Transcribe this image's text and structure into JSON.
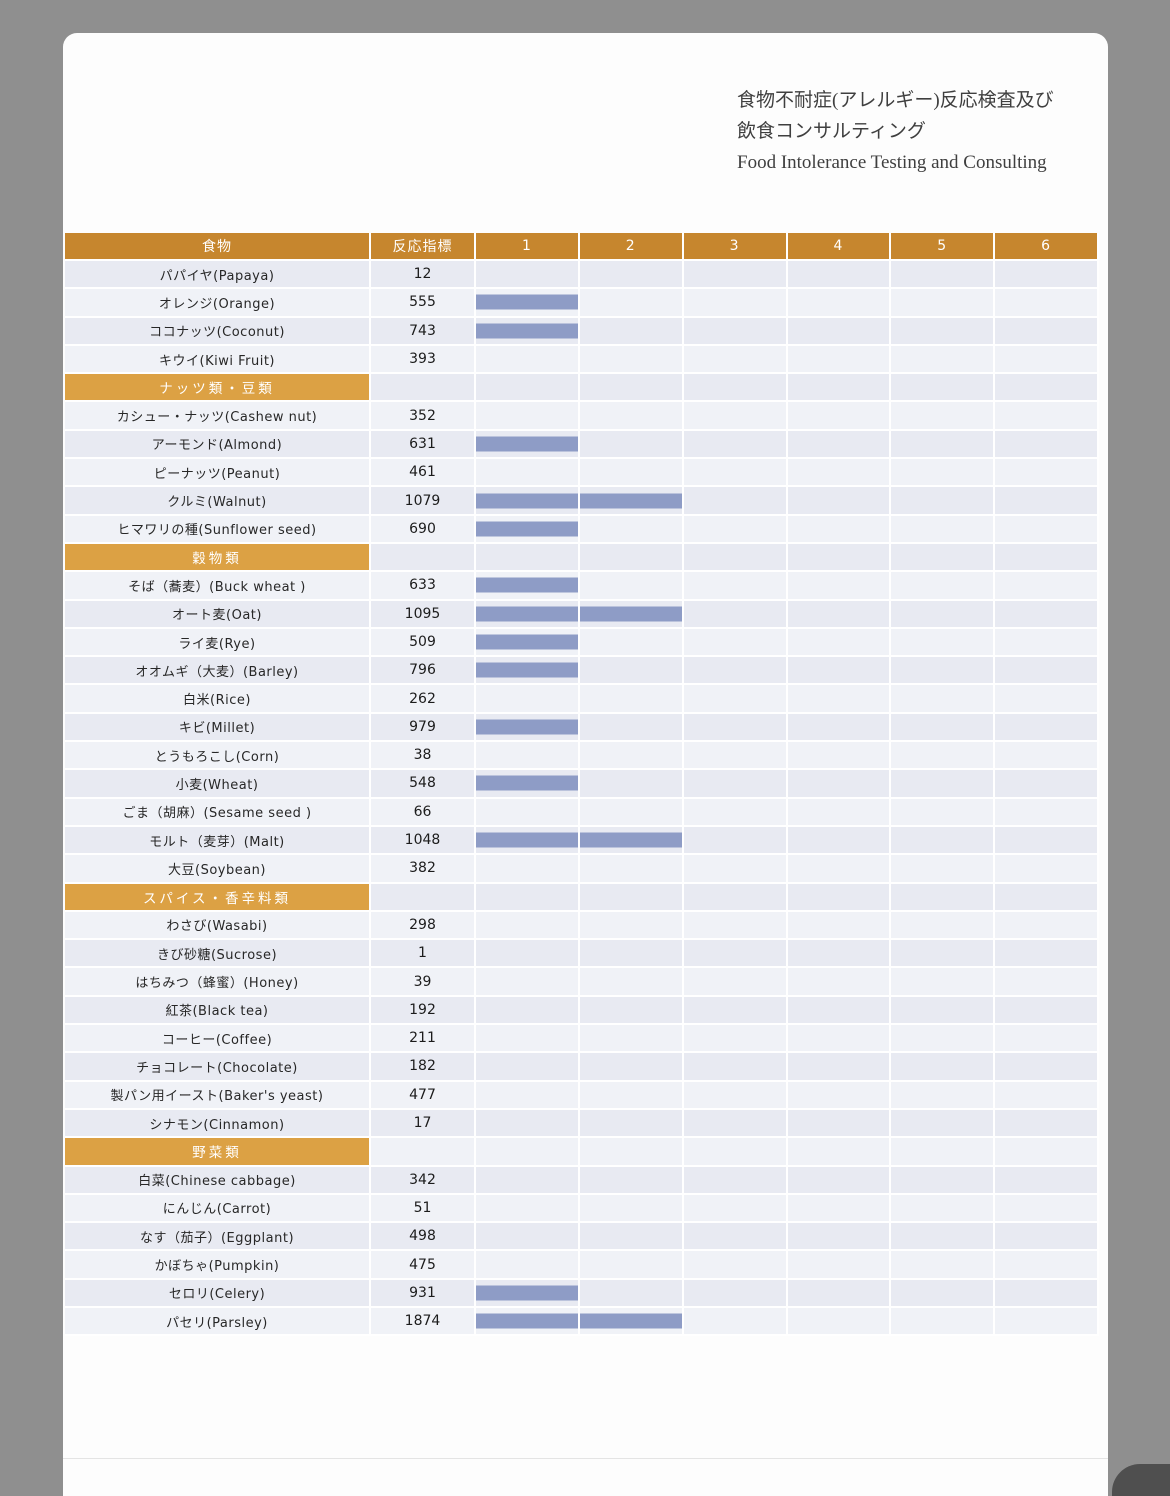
{
  "page": {
    "title_lines": [
      "食物不耐症(アレルギー)反応検査及び",
      "飲食コンサルティング",
      "Food Intolerance Testing and Consulting"
    ]
  },
  "colors": {
    "header_bg": "#C6862E",
    "section_bg": "#DCA144",
    "bar": "#8E9CC6",
    "row_odd": "#E8EAF2",
    "row_even": "#F0F2F7"
  },
  "table": {
    "headers": {
      "food": "食物",
      "index": "反応指標",
      "grades": [
        "1",
        "2",
        "3",
        "4",
        "5",
        "6"
      ]
    },
    "rows": [
      {
        "type": "food",
        "label": "パパイヤ(Papaya)",
        "value": 12,
        "bar": 0
      },
      {
        "type": "food",
        "label": "オレンジ(Orange)",
        "value": 555,
        "bar": 1
      },
      {
        "type": "food",
        "label": "ココナッツ(Coconut)",
        "value": 743,
        "bar": 1
      },
      {
        "type": "food",
        "label": "キウイ(Kiwi Fruit)",
        "value": 393,
        "bar": 0
      },
      {
        "type": "section",
        "label": "ナッツ類・豆類"
      },
      {
        "type": "food",
        "label": "カシュー・ナッツ(Cashew nut)",
        "value": 352,
        "bar": 0
      },
      {
        "type": "food",
        "label": "アーモンド(Almond)",
        "value": 631,
        "bar": 1
      },
      {
        "type": "food",
        "label": "ピーナッツ(Peanut)",
        "value": 461,
        "bar": 0
      },
      {
        "type": "food",
        "label": "クルミ(Walnut)",
        "value": 1079,
        "bar": 2
      },
      {
        "type": "food",
        "label": "ヒマワリの種(Sunflower seed)",
        "value": 690,
        "bar": 1
      },
      {
        "type": "section",
        "label": "穀物類"
      },
      {
        "type": "food",
        "label": "そば（蕎麦）(Buck wheat )",
        "value": 633,
        "bar": 1
      },
      {
        "type": "food",
        "label": "オート麦(Oat)",
        "value": 1095,
        "bar": 2
      },
      {
        "type": "food",
        "label": "ライ麦(Rye)",
        "value": 509,
        "bar": 1
      },
      {
        "type": "food",
        "label": "オオムギ（大麦）(Barley)",
        "value": 796,
        "bar": 1
      },
      {
        "type": "food",
        "label": "白米(Rice)",
        "value": 262,
        "bar": 0
      },
      {
        "type": "food",
        "label": "キビ(Millet)",
        "value": 979,
        "bar": 1
      },
      {
        "type": "food",
        "label": "とうもろこし(Corn)",
        "value": 38,
        "bar": 0
      },
      {
        "type": "food",
        "label": "小麦(Wheat)",
        "value": 548,
        "bar": 1
      },
      {
        "type": "food",
        "label": "ごま（胡麻）(Sesame seed )",
        "value": 66,
        "bar": 0
      },
      {
        "type": "food",
        "label": "モルト（麦芽）(Malt)",
        "value": 1048,
        "bar": 2
      },
      {
        "type": "food",
        "label": "大豆(Soybean)",
        "value": 382,
        "bar": 0
      },
      {
        "type": "section",
        "label": "スパイス・香辛料類"
      },
      {
        "type": "food",
        "label": "わさび(Wasabi)",
        "value": 298,
        "bar": 0
      },
      {
        "type": "food",
        "label": "きび砂糖(Sucrose)",
        "value": 1,
        "bar": 0
      },
      {
        "type": "food",
        "label": "はちみつ（蜂蜜）(Honey)",
        "value": 39,
        "bar": 0
      },
      {
        "type": "food",
        "label": "紅茶(Black tea)",
        "value": 192,
        "bar": 0
      },
      {
        "type": "food",
        "label": "コーヒー(Coffee)",
        "value": 211,
        "bar": 0
      },
      {
        "type": "food",
        "label": "チョコレート(Chocolate)",
        "value": 182,
        "bar": 0
      },
      {
        "type": "food",
        "label": "製パン用イースト(Baker's yeast)",
        "value": 477,
        "bar": 0
      },
      {
        "type": "food",
        "label": "シナモン(Cinnamon)",
        "value": 17,
        "bar": 0
      },
      {
        "type": "section",
        "label": "野菜類"
      },
      {
        "type": "food",
        "label": "白菜(Chinese cabbage)",
        "value": 342,
        "bar": 0
      },
      {
        "type": "food",
        "label": "にんじん(Carrot)",
        "value": 51,
        "bar": 0
      },
      {
        "type": "food",
        "label": "なす（茄子）(Eggplant)",
        "value": 498,
        "bar": 0
      },
      {
        "type": "food",
        "label": "かぼちゃ(Pumpkin)",
        "value": 475,
        "bar": 0
      },
      {
        "type": "food",
        "label": "セロリ(Celery)",
        "value": 931,
        "bar": 1
      },
      {
        "type": "food",
        "label": "パセリ(Parsley)",
        "value": 1874,
        "bar": 2
      }
    ]
  },
  "chart_data": {
    "type": "bar",
    "title": "食物不耐症(アレルギー)反応検査及び 飲食コンサルティング — Food Intolerance Testing and Consulting",
    "xlabel": "反応指標",
    "ylabel": "食物",
    "grade_columns": [
      "1",
      "2",
      "3",
      "4",
      "5",
      "6"
    ],
    "categories": [
      "パパイヤ(Papaya)",
      "オレンジ(Orange)",
      "ココナッツ(Coconut)",
      "キウイ(Kiwi Fruit)",
      "カシュー・ナッツ(Cashew nut)",
      "アーモンド(Almond)",
      "ピーナッツ(Peanut)",
      "クルミ(Walnut)",
      "ヒマワリの種(Sunflower seed)",
      "そば（蕎麦）(Buck wheat )",
      "オート麦(Oat)",
      "ライ麦(Rye)",
      "オオムギ（大麦）(Barley)",
      "白米(Rice)",
      "キビ(Millet)",
      "とうもろこし(Corn)",
      "小麦(Wheat)",
      "ごま（胡麻）(Sesame seed )",
      "モルト（麦芽）(Malt)",
      "大豆(Soybean)",
      "わさび(Wasabi)",
      "きび砂糖(Sucrose)",
      "はちみつ（蜂蜜）(Honey)",
      "紅茶(Black tea)",
      "コーヒー(Coffee)",
      "チョコレート(Chocolate)",
      "製パン用イースト(Baker's yeast)",
      "シナモン(Cinnamon)",
      "白菜(Chinese cabbage)",
      "にんじん(Carrot)",
      "なす（茄子）(Eggplant)",
      "かぼちゃ(Pumpkin)",
      "セロリ(Celery)",
      "パセリ(Parsley)"
    ],
    "values": [
      12,
      555,
      743,
      393,
      352,
      631,
      461,
      1079,
      690,
      633,
      1095,
      509,
      796,
      262,
      979,
      38,
      548,
      66,
      1048,
      382,
      298,
      1,
      39,
      192,
      211,
      182,
      477,
      17,
      342,
      51,
      498,
      475,
      931,
      1874
    ],
    "bar_grades": [
      0,
      1,
      1,
      0,
      0,
      1,
      0,
      2,
      1,
      1,
      2,
      1,
      1,
      0,
      1,
      0,
      1,
      0,
      2,
      0,
      0,
      0,
      0,
      0,
      0,
      0,
      0,
      0,
      0,
      0,
      0,
      0,
      1,
      2
    ],
    "section_groups": [
      "ナッツ類・豆類",
      "穀物類",
      "スパイス・香辛料類",
      "野菜類"
    ]
  }
}
